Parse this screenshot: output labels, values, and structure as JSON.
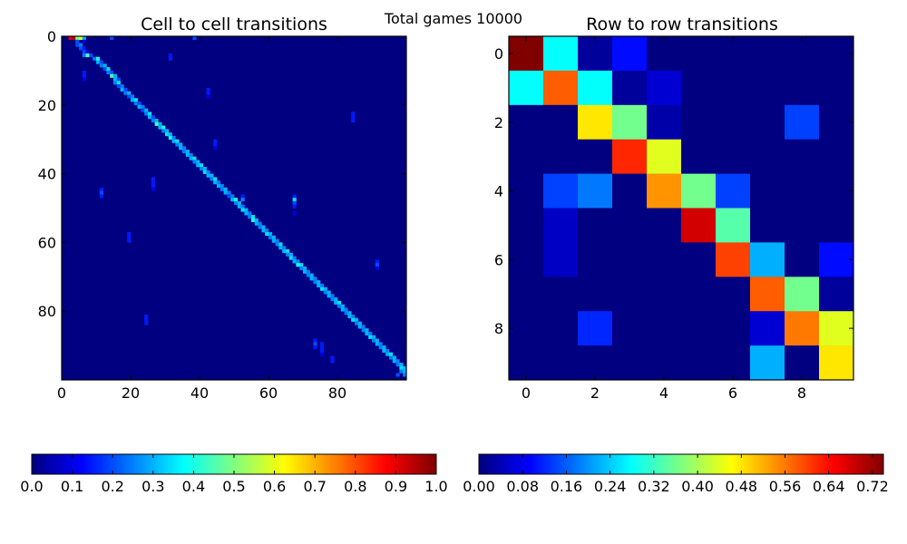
{
  "figure_title": "Total games 10000",
  "chart_data": [
    {
      "type": "heatmap",
      "title": "Cell to cell transitions",
      "colormap": "jet",
      "size": 100,
      "xlabel": "",
      "ylabel": "",
      "xticks": [
        0,
        20,
        40,
        60,
        80
      ],
      "yticks": [
        0,
        20,
        40,
        60,
        80
      ],
      "xlim": [
        0,
        100
      ],
      "ylim": [
        100,
        0
      ],
      "grid": false,
      "colorbar": {
        "orientation": "horizontal",
        "placement": "bottom",
        "range": [
          0.0,
          1.0
        ],
        "ticks": [
          "0.0",
          "0.1",
          "0.2",
          "0.3",
          "0.4",
          "0.5",
          "0.6",
          "0.7",
          "0.8",
          "0.9",
          "1.0"
        ]
      },
      "background_value": 0.0,
      "cells": [
        [
          0,
          2,
          0.9
        ],
        [
          0,
          3,
          0.95
        ],
        [
          0,
          4,
          0.5
        ],
        [
          0,
          5,
          0.6
        ],
        [
          0,
          6,
          0.3
        ],
        [
          0,
          14,
          0.2
        ],
        [
          0,
          38,
          0.2
        ],
        [
          1,
          4,
          0.2
        ],
        [
          1,
          6,
          0.1
        ],
        [
          2,
          4,
          0.2
        ],
        [
          2,
          5,
          0.25
        ],
        [
          3,
          5,
          0.2
        ],
        [
          3,
          6,
          0.15
        ],
        [
          4,
          6,
          0.2
        ],
        [
          4,
          7,
          0.1
        ],
        [
          5,
          6,
          0.25
        ],
        [
          5,
          7,
          0.45
        ],
        [
          5,
          8,
          0.2
        ],
        [
          5,
          31,
          0.15
        ],
        [
          6,
          9,
          0.25
        ],
        [
          6,
          10,
          0.4
        ],
        [
          6,
          31,
          0.15
        ],
        [
          7,
          10,
          0.3
        ],
        [
          7,
          11,
          0.2
        ],
        [
          8,
          11,
          0.25
        ],
        [
          8,
          12,
          0.3
        ],
        [
          9,
          12,
          0.2
        ],
        [
          9,
          13,
          0.35
        ],
        [
          10,
          13,
          0.25
        ],
        [
          10,
          14,
          0.2
        ],
        [
          10,
          6,
          0.15
        ],
        [
          11,
          14,
          0.45
        ],
        [
          11,
          15,
          0.3
        ],
        [
          11,
          6,
          0.15
        ],
        [
          12,
          15,
          0.3
        ],
        [
          12,
          16,
          0.2
        ],
        [
          12,
          6,
          0.1
        ],
        [
          13,
          15,
          0.25
        ],
        [
          13,
          16,
          0.35
        ],
        [
          14,
          16,
          0.2
        ],
        [
          14,
          17,
          0.25
        ],
        [
          15,
          17,
          0.3
        ],
        [
          15,
          18,
          0.2
        ],
        [
          15,
          42,
          0.15
        ],
        [
          16,
          18,
          0.25
        ],
        [
          16,
          19,
          0.3
        ],
        [
          16,
          42,
          0.15
        ],
        [
          17,
          19,
          0.2
        ],
        [
          17,
          20,
          0.25
        ],
        [
          17,
          42,
          0.1
        ],
        [
          18,
          20,
          0.3
        ],
        [
          18,
          21,
          0.35
        ],
        [
          19,
          21,
          0.25
        ],
        [
          19,
          22,
          0.2
        ],
        [
          20,
          22,
          0.3
        ],
        [
          20,
          23,
          0.25
        ],
        [
          21,
          23,
          0.2
        ],
        [
          21,
          24,
          0.3
        ],
        [
          22,
          24,
          0.25
        ],
        [
          22,
          25,
          0.35
        ],
        [
          22,
          84,
          0.15
        ],
        [
          23,
          25,
          0.3
        ],
        [
          23,
          26,
          0.2
        ],
        [
          23,
          84,
          0.15
        ],
        [
          24,
          26,
          0.25
        ],
        [
          24,
          27,
          0.3
        ],
        [
          24,
          84,
          0.15
        ],
        [
          25,
          27,
          0.45
        ],
        [
          25,
          28,
          0.3
        ],
        [
          26,
          28,
          0.3
        ],
        [
          26,
          29,
          0.4
        ],
        [
          27,
          29,
          0.25
        ],
        [
          27,
          30,
          0.3
        ],
        [
          28,
          30,
          0.35
        ],
        [
          28,
          31,
          0.3
        ],
        [
          29,
          31,
          0.4
        ],
        [
          29,
          32,
          0.25
        ],
        [
          30,
          32,
          0.3
        ],
        [
          30,
          33,
          0.35
        ],
        [
          30,
          44,
          0.15
        ],
        [
          31,
          33,
          0.25
        ],
        [
          31,
          34,
          0.3
        ],
        [
          31,
          44,
          0.15
        ],
        [
          32,
          34,
          0.3
        ],
        [
          32,
          35,
          0.25
        ],
        [
          32,
          44,
          0.1
        ],
        [
          33,
          35,
          0.25
        ],
        [
          33,
          36,
          0.3
        ],
        [
          34,
          36,
          0.3
        ],
        [
          34,
          37,
          0.25
        ],
        [
          35,
          37,
          0.3
        ],
        [
          35,
          38,
          0.35
        ],
        [
          36,
          38,
          0.25
        ],
        [
          36,
          39,
          0.3
        ],
        [
          37,
          39,
          0.3
        ],
        [
          37,
          40,
          0.35
        ],
        [
          38,
          40,
          0.25
        ],
        [
          38,
          41,
          0.3
        ],
        [
          39,
          41,
          0.35
        ],
        [
          39,
          42,
          0.25
        ],
        [
          40,
          42,
          0.3
        ],
        [
          40,
          43,
          0.3
        ],
        [
          41,
          43,
          0.25
        ],
        [
          41,
          44,
          0.35
        ],
        [
          41,
          26,
          0.15
        ],
        [
          42,
          44,
          0.3
        ],
        [
          42,
          45,
          0.25
        ],
        [
          42,
          26,
          0.15
        ],
        [
          43,
          45,
          0.3
        ],
        [
          43,
          46,
          0.25
        ],
        [
          43,
          26,
          0.15
        ],
        [
          44,
          46,
          0.25
        ],
        [
          44,
          47,
          0.3
        ],
        [
          44,
          11,
          0.15
        ],
        [
          44,
          26,
          0.1
        ],
        [
          45,
          47,
          0.3
        ],
        [
          45,
          48,
          0.25
        ],
        [
          45,
          11,
          0.2
        ],
        [
          46,
          48,
          0.2
        ],
        [
          46,
          49,
          0.25
        ],
        [
          46,
          11,
          0.15
        ],
        [
          46,
          52,
          0.15
        ],
        [
          46,
          67,
          0.15
        ],
        [
          47,
          49,
          0.3
        ],
        [
          47,
          50,
          0.4
        ],
        [
          47,
          52,
          0.25
        ],
        [
          47,
          67,
          0.35
        ],
        [
          48,
          50,
          0.25
        ],
        [
          48,
          51,
          0.3
        ],
        [
          48,
          67,
          0.2
        ],
        [
          49,
          51,
          0.3
        ],
        [
          49,
          52,
          0.25
        ],
        [
          49,
          67,
          0.15
        ],
        [
          50,
          52,
          0.35
        ],
        [
          50,
          53,
          0.3
        ],
        [
          51,
          53,
          0.3
        ],
        [
          51,
          54,
          0.25
        ],
        [
          51,
          67,
          0.1
        ],
        [
          52,
          54,
          0.25
        ],
        [
          52,
          55,
          0.35
        ],
        [
          53,
          55,
          0.4
        ],
        [
          53,
          56,
          0.3
        ],
        [
          54,
          56,
          0.3
        ],
        [
          54,
          57,
          0.25
        ],
        [
          55,
          57,
          0.25
        ],
        [
          55,
          58,
          0.3
        ],
        [
          56,
          58,
          0.3
        ],
        [
          56,
          59,
          0.25
        ],
        [
          57,
          59,
          0.35
        ],
        [
          57,
          60,
          0.3
        ],
        [
          57,
          19,
          0.15
        ],
        [
          58,
          60,
          0.25
        ],
        [
          58,
          61,
          0.3
        ],
        [
          58,
          19,
          0.15
        ],
        [
          59,
          61,
          0.3
        ],
        [
          59,
          62,
          0.25
        ],
        [
          59,
          19,
          0.15
        ],
        [
          60,
          62,
          0.25
        ],
        [
          60,
          63,
          0.35
        ],
        [
          61,
          63,
          0.3
        ],
        [
          61,
          64,
          0.25
        ],
        [
          62,
          64,
          0.3
        ],
        [
          62,
          65,
          0.35
        ],
        [
          63,
          65,
          0.25
        ],
        [
          63,
          66,
          0.3
        ],
        [
          64,
          66,
          0.35
        ],
        [
          64,
          67,
          0.25
        ],
        [
          65,
          67,
          0.3
        ],
        [
          65,
          68,
          0.25
        ],
        [
          65,
          91,
          0.15
        ],
        [
          66,
          68,
          0.4
        ],
        [
          66,
          69,
          0.35
        ],
        [
          66,
          91,
          0.2
        ],
        [
          67,
          69,
          0.25
        ],
        [
          67,
          70,
          0.3
        ],
        [
          67,
          91,
          0.1
        ],
        [
          68,
          70,
          0.3
        ],
        [
          68,
          71,
          0.25
        ],
        [
          69,
          71,
          0.25
        ],
        [
          69,
          72,
          0.3
        ],
        [
          70,
          72,
          0.3
        ],
        [
          70,
          73,
          0.25
        ],
        [
          71,
          73,
          0.25
        ],
        [
          71,
          74,
          0.3
        ],
        [
          72,
          74,
          0.3
        ],
        [
          72,
          75,
          0.25
        ],
        [
          73,
          75,
          0.35
        ],
        [
          73,
          76,
          0.3
        ],
        [
          74,
          76,
          0.25
        ],
        [
          74,
          77,
          0.3
        ],
        [
          75,
          77,
          0.3
        ],
        [
          75,
          78,
          0.25
        ],
        [
          76,
          78,
          0.25
        ],
        [
          76,
          79,
          0.3
        ],
        [
          77,
          79,
          0.3
        ],
        [
          77,
          80,
          0.35
        ],
        [
          78,
          80,
          0.25
        ],
        [
          78,
          81,
          0.3
        ],
        [
          79,
          81,
          0.3
        ],
        [
          79,
          82,
          0.25
        ],
        [
          80,
          82,
          0.25
        ],
        [
          80,
          83,
          0.3
        ],
        [
          81,
          83,
          0.3
        ],
        [
          81,
          84,
          0.25
        ],
        [
          81,
          24,
          0.15
        ],
        [
          82,
          84,
          0.35
        ],
        [
          82,
          85,
          0.3
        ],
        [
          82,
          24,
          0.15
        ],
        [
          83,
          85,
          0.25
        ],
        [
          83,
          86,
          0.3
        ],
        [
          83,
          24,
          0.15
        ],
        [
          84,
          86,
          0.3
        ],
        [
          84,
          87,
          0.25
        ],
        [
          85,
          87,
          0.25
        ],
        [
          85,
          88,
          0.3
        ],
        [
          86,
          88,
          0.3
        ],
        [
          86,
          89,
          0.25
        ],
        [
          87,
          89,
          0.35
        ],
        [
          87,
          90,
          0.3
        ],
        [
          88,
          90,
          0.25
        ],
        [
          88,
          91,
          0.3
        ],
        [
          88,
          73,
          0.15
        ],
        [
          89,
          91,
          0.3
        ],
        [
          89,
          92,
          0.25
        ],
        [
          89,
          73,
          0.2
        ],
        [
          89,
          75,
          0.15
        ],
        [
          90,
          92,
          0.25
        ],
        [
          90,
          93,
          0.3
        ],
        [
          90,
          73,
          0.15
        ],
        [
          90,
          75,
          0.15
        ],
        [
          91,
          93,
          0.3
        ],
        [
          91,
          94,
          0.25
        ],
        [
          91,
          75,
          0.15
        ],
        [
          92,
          94,
          0.3
        ],
        [
          92,
          95,
          0.35
        ],
        [
          92,
          75,
          0.1
        ],
        [
          93,
          95,
          0.25
        ],
        [
          93,
          96,
          0.3
        ],
        [
          93,
          78,
          0.15
        ],
        [
          94,
          96,
          0.3
        ],
        [
          94,
          97,
          0.25
        ],
        [
          94,
          78,
          0.15
        ],
        [
          95,
          97,
          0.25
        ],
        [
          95,
          98,
          0.3
        ],
        [
          96,
          98,
          0.35
        ],
        [
          96,
          99,
          0.3
        ],
        [
          97,
          98,
          0.25
        ],
        [
          97,
          99,
          0.3
        ],
        [
          98,
          99,
          0.25
        ],
        [
          98,
          97,
          0.2
        ]
      ]
    },
    {
      "type": "heatmap",
      "title": "Row to row transitions",
      "colormap": "jet",
      "size": 10,
      "xlabel": "",
      "ylabel": "",
      "xticks": [
        0,
        2,
        4,
        6,
        8
      ],
      "yticks": [
        0,
        2,
        4,
        6,
        8
      ],
      "xlim": [
        -0.5,
        9.5
      ],
      "ylim": [
        9.5,
        -0.5
      ],
      "grid": false,
      "colorbar": {
        "orientation": "horizontal",
        "placement": "bottom",
        "range": [
          0.0,
          0.74
        ],
        "ticks": [
          "0.00",
          "0.08",
          "0.16",
          "0.24",
          "0.32",
          "0.40",
          "0.48",
          "0.56",
          "0.64",
          "0.72"
        ]
      },
      "matrix": [
        [
          0.74,
          0.28,
          0.02,
          0.1,
          0.0,
          0.0,
          0.0,
          0.0,
          0.0,
          0.0
        ],
        [
          0.28,
          0.58,
          0.28,
          0.02,
          0.06,
          0.0,
          0.0,
          0.0,
          0.0,
          0.0
        ],
        [
          0.0,
          0.0,
          0.48,
          0.36,
          0.03,
          0.0,
          0.0,
          0.0,
          0.14,
          0.0
        ],
        [
          0.0,
          0.0,
          0.0,
          0.62,
          0.44,
          0.0,
          0.0,
          0.0,
          0.0,
          0.0
        ],
        [
          0.0,
          0.14,
          0.18,
          0.0,
          0.54,
          0.36,
          0.14,
          0.0,
          0.0,
          0.0
        ],
        [
          0.0,
          0.05,
          0.0,
          0.0,
          0.0,
          0.68,
          0.34,
          0.0,
          0.0,
          0.0
        ],
        [
          0.0,
          0.05,
          0.0,
          0.0,
          0.0,
          0.0,
          0.6,
          0.22,
          0.0,
          0.1
        ],
        [
          0.0,
          0.0,
          0.0,
          0.0,
          0.0,
          0.0,
          0.0,
          0.58,
          0.36,
          0.02
        ],
        [
          0.0,
          0.0,
          0.12,
          0.0,
          0.0,
          0.0,
          0.0,
          0.06,
          0.56,
          0.44
        ],
        [
          0.0,
          0.0,
          0.0,
          0.0,
          0.0,
          0.0,
          0.0,
          0.22,
          0.0,
          0.48
        ]
      ]
    }
  ]
}
